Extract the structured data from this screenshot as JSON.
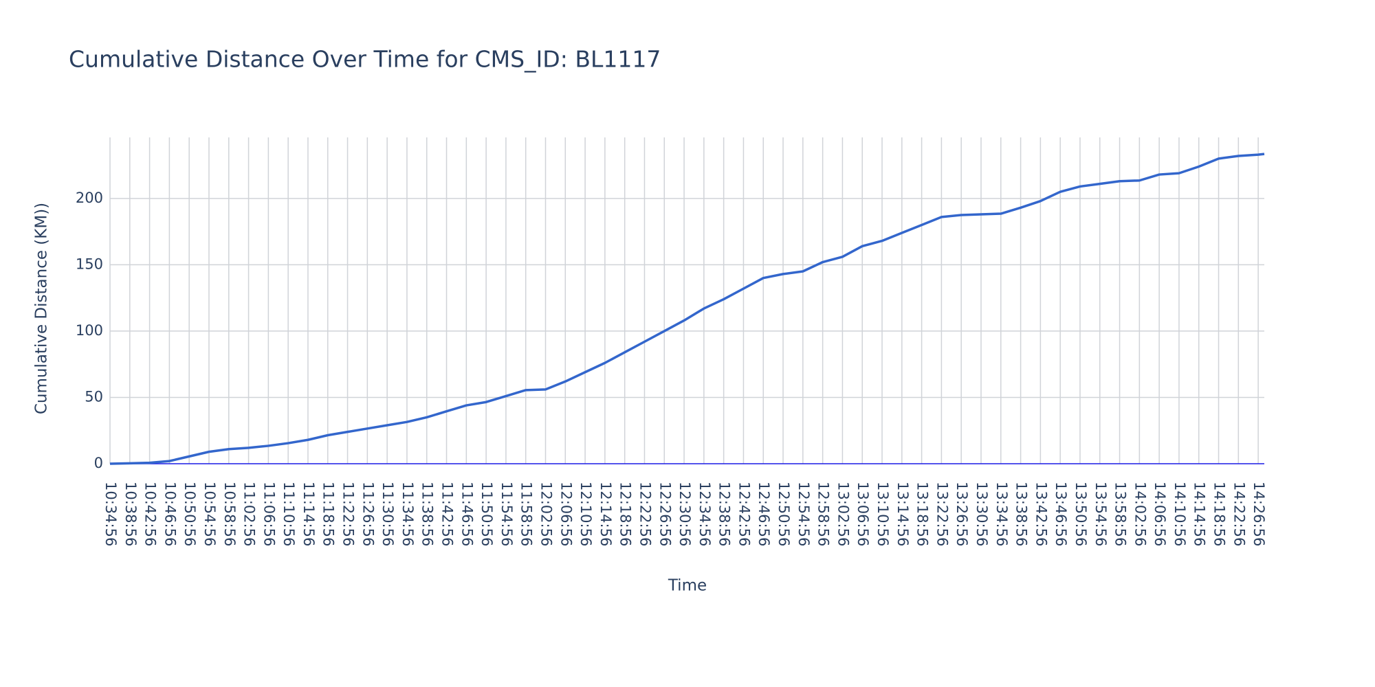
{
  "chart_data": {
    "type": "line",
    "title": "Cumulative Distance Over Time for CMS_ID: BL1117",
    "x_label": "Time",
    "y_label": "Cumulative Distance (KM))",
    "x": [
      "10:34:56",
      "10:38:56",
      "10:42:56",
      "10:46:56",
      "10:50:56",
      "10:54:56",
      "10:58:56",
      "11:02:56",
      "11:06:56",
      "11:10:56",
      "11:14:56",
      "11:18:56",
      "11:22:56",
      "11:26:56",
      "11:30:56",
      "11:34:56",
      "11:38:56",
      "11:42:56",
      "11:46:56",
      "11:50:56",
      "11:54:56",
      "11:58:56",
      "12:02:56",
      "12:06:56",
      "12:10:56",
      "12:14:56",
      "12:18:56",
      "12:22:56",
      "12:26:56",
      "12:30:56",
      "12:34:56",
      "12:38:56",
      "12:42:56",
      "12:46:56",
      "12:50:56",
      "12:54:56",
      "12:58:56",
      "13:02:56",
      "13:06:56",
      "13:10:56",
      "13:14:56",
      "13:18:56",
      "13:22:56",
      "13:26:56",
      "13:30:56",
      "13:34:56",
      "13:38:56",
      "13:42:56",
      "13:46:56",
      "13:50:56",
      "13:54:56",
      "13:58:56",
      "14:02:56",
      "14:06:56",
      "14:10:56",
      "14:14:56",
      "14:18:56",
      "14:22:56",
      "14:26:56",
      "14:28:10"
    ],
    "series": [
      {
        "name": "BL1117",
        "color": "#3366cc",
        "values": [
          0,
          0.3,
          0.7,
          2,
          5.5,
          9,
          11,
          12,
          13.5,
          15.5,
          18,
          21.5,
          24,
          26.5,
          29,
          31.5,
          35,
          39.5,
          44,
          46.5,
          51,
          55.5,
          56,
          62,
          69,
          76,
          84,
          92,
          100,
          108,
          117,
          124,
          132,
          140,
          143,
          145,
          152,
          156,
          164,
          168,
          174,
          180,
          186,
          187.5,
          188,
          188.5,
          193,
          198,
          205,
          209,
          211,
          213,
          213.5,
          218,
          219,
          224,
          230,
          232,
          233,
          233.5
        ]
      }
    ],
    "xlim": [
      "10:34:56",
      "14:28:10"
    ],
    "xticks": [
      "10:34:56",
      "10:38:56",
      "10:42:56",
      "10:46:56",
      "10:50:56",
      "10:54:56",
      "10:58:56",
      "11:02:56",
      "11:06:56",
      "11:10:56",
      "11:14:56",
      "11:18:56",
      "11:22:56",
      "11:26:56",
      "11:30:56",
      "11:34:56",
      "11:38:56",
      "11:42:56",
      "11:46:56",
      "11:50:56",
      "11:54:56",
      "11:58:56",
      "12:02:56",
      "12:06:56",
      "12:10:56",
      "12:14:56",
      "12:18:56",
      "12:22:56",
      "12:26:56",
      "12:30:56",
      "12:34:56",
      "12:38:56",
      "12:42:56",
      "12:46:56",
      "12:50:56",
      "12:54:56",
      "12:58:56",
      "13:02:56",
      "13:06:56",
      "13:10:56",
      "13:14:56",
      "13:18:56",
      "13:22:56",
      "13:26:56",
      "13:30:56",
      "13:34:56",
      "13:38:56",
      "13:42:56",
      "13:46:56",
      "13:50:56",
      "13:54:56",
      "13:58:56",
      "14:02:56",
      "14:06:56",
      "14:10:56",
      "14:14:56",
      "14:18:56",
      "14:22:56",
      "14:26:56"
    ],
    "ylim": [
      0,
      246
    ],
    "yticks": [
      0,
      50,
      100,
      150,
      200
    ],
    "grid": true
  }
}
